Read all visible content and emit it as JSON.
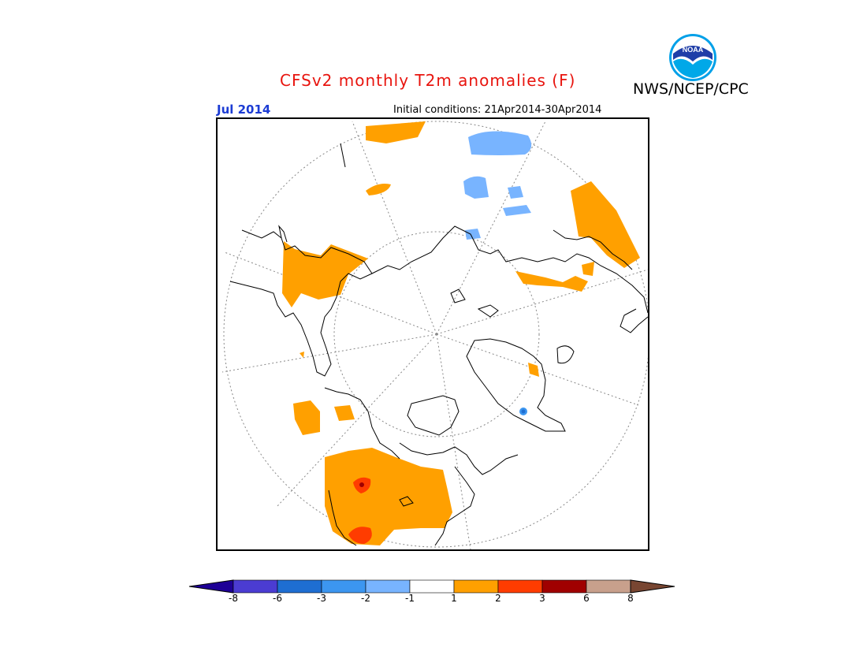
{
  "title": "CFSv2 monthly T2m anomalies (F)",
  "agency": "NWS/NCEP/CPC",
  "logo_text": "NOAA",
  "valid_month": "Jul 2014",
  "initial_conditions": "Initial conditions: 21Apr2014-30Apr2014",
  "colors": {
    "title": "#e8140e",
    "month": "#1c3cd4",
    "warm_1_2": "#ffa000",
    "warm_2_3": "#ff3c00",
    "warm_3_6": "#a00000",
    "cool_1_2": "#78b4ff",
    "cool_2_3": "#3c96f0",
    "cool_3_6": "#1e6ed2"
  },
  "colorbar": {
    "bins": [
      {
        "color": "#1e0096"
      },
      {
        "color": "#4b3cd2"
      },
      {
        "color": "#1e6ed2"
      },
      {
        "color": "#3c96f0"
      },
      {
        "color": "#78b4ff"
      },
      {
        "color": "#ffffff"
      },
      {
        "color": "#ffa000"
      },
      {
        "color": "#ff3c00"
      },
      {
        "color": "#a00000"
      },
      {
        "color": "#c8a08c"
      },
      {
        "color": "#784632"
      }
    ],
    "tick_labels": [
      "-8",
      "-6",
      "-3",
      "-2",
      "-1",
      "1",
      "2",
      "3",
      "6",
      "8"
    ]
  }
}
